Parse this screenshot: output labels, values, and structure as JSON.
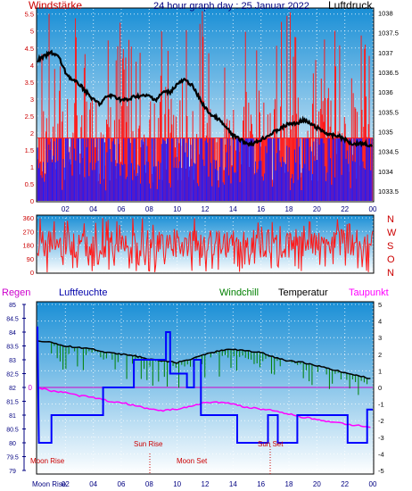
{
  "header": {
    "left_label": "Windstärke",
    "title": "24 hour graph day : 25 Januar 2022",
    "right_label": "Luftdruck"
  },
  "colors": {
    "sky_top": "#1a8fd6",
    "sky_bottom": "#ffffff",
    "wind_red": "#ff1a1a",
    "wind_blue": "#1a1aff",
    "pressure_black": "#000000",
    "humidity_blue": "#0000ff",
    "windchill_green": "#008000",
    "dewpoint_magenta": "#ff00ff",
    "axis_red": "#cc0000",
    "axis_blue": "#000080"
  },
  "chart_data": [
    {
      "type": "line",
      "title": "24 hour graph day : 25 Januar 2022",
      "x_ticks": [
        "02",
        "04",
        "06",
        "08",
        "10",
        "12",
        "14",
        "16",
        "18",
        "20",
        "22",
        "00"
      ],
      "left_axis": {
        "label": "Windstärke",
        "ticks": [
          "0",
          "0.5",
          "1",
          "1.5",
          "2",
          "2.5",
          "3",
          "3.5",
          "4",
          "4.5",
          "5",
          "5.5"
        ],
        "ylim": [
          0,
          5.65
        ]
      },
      "right_axis": {
        "label": "Luftdruck",
        "ticks": [
          "1033.5",
          "1034",
          "1034.5",
          "1035",
          "1035.5",
          "1036",
          "1036.5",
          "1037",
          "1037.5",
          "1038"
        ],
        "ylim": [
          1033.25,
          1038.1
        ]
      },
      "series": [
        {
          "name": "Luftdruck",
          "x": [
            0,
            0.5,
            1,
            1.5,
            2,
            2.5,
            3,
            3.5,
            4,
            4.5,
            5,
            5.5,
            6,
            6.5,
            7,
            7.5,
            8,
            8.5,
            9,
            9.5,
            10,
            10.5,
            11,
            11.5,
            12,
            12.5,
            13,
            13.5,
            14,
            14.5,
            15,
            15.5,
            16,
            16.5,
            17,
            17.5,
            18,
            18.5,
            19,
            19.5,
            20,
            20.5,
            21,
            21.5,
            22,
            22.5,
            23,
            23.5,
            24
          ],
          "values": [
            1036.8,
            1036.9,
            1037.0,
            1036.9,
            1036.5,
            1036.3,
            1036.2,
            1036.0,
            1035.8,
            1035.7,
            1035.9,
            1035.9,
            1035.8,
            1035.8,
            1035.9,
            1035.9,
            1035.9,
            1035.8,
            1036.0,
            1036.0,
            1036.2,
            1036.3,
            1036.2,
            1035.9,
            1035.6,
            1035.4,
            1035.3,
            1035.1,
            1034.9,
            1034.8,
            1034.7,
            1034.7,
            1034.8,
            1034.9,
            1035.0,
            1035.1,
            1035.2,
            1035.2,
            1035.3,
            1035.2,
            1035.1,
            1035.0,
            1034.9,
            1034.9,
            1034.8,
            1034.7,
            1034.7,
            1034.7,
            1034.6
          ]
        }
      ]
    },
    {
      "type": "scatter",
      "left_ticks": [
        "0",
        "90",
        "180",
        "270",
        "360"
      ],
      "right_letters": [
        "N",
        "W",
        "S",
        "O",
        "N"
      ],
      "ylim": [
        0,
        360
      ],
      "series": [
        {
          "name": "Windrichtung"
        }
      ]
    },
    {
      "type": "line",
      "labels": {
        "regen": "Regen",
        "luftfeuchte": "Luftfeuchte",
        "windchill": "Windchill",
        "temperatur": "Temperatur",
        "taupunkt": "Taupunkt"
      },
      "left_ticks": [
        "79",
        "79.5",
        "80",
        "80.5",
        "81",
        "81.5",
        "82",
        "82.5",
        "83",
        "83.5",
        "84",
        "84.5",
        "85"
      ],
      "left_ylim": [
        79,
        85
      ],
      "rain_zero_label": "0",
      "right_ticks": [
        "-5",
        "-4",
        "-3",
        "-2",
        "-1",
        "0",
        "1",
        "2",
        "3",
        "4",
        "5"
      ],
      "right_ylim": [
        -5,
        5
      ],
      "series": [
        {
          "name": "Temperatur",
          "x": [
            0,
            1,
            2,
            3,
            4,
            5,
            6,
            7,
            8,
            9,
            10,
            11,
            12,
            13,
            14,
            15,
            16,
            17,
            18,
            19,
            20,
            21,
            22,
            23,
            24
          ],
          "values": [
            2.8,
            2.7,
            2.5,
            2.4,
            2.3,
            2.1,
            2.0,
            1.9,
            1.7,
            1.6,
            1.5,
            1.7,
            2.0,
            2.2,
            2.3,
            2.2,
            2.1,
            1.8,
            1.6,
            1.5,
            1.3,
            1.1,
            0.9,
            0.7,
            0.5
          ]
        },
        {
          "name": "Taupunkt",
          "x": [
            0,
            1,
            2,
            3,
            4,
            5,
            6,
            7,
            8,
            9,
            10,
            11,
            12,
            13,
            14,
            15,
            16,
            17,
            18,
            19,
            20,
            21,
            22,
            23,
            24
          ],
          "values": [
            0.0,
            -0.2,
            -0.3,
            -0.5,
            -0.6,
            -0.8,
            -0.9,
            -1.1,
            -1.3,
            -1.4,
            -1.3,
            -1.1,
            -0.9,
            -0.9,
            -1.0,
            -1.2,
            -1.3,
            -1.4,
            -1.6,
            -1.8,
            -1.9,
            -2.1,
            -2.2,
            -2.3,
            -2.4
          ]
        },
        {
          "name": "Luftfeuchte",
          "steps": [
            [
              0,
              84.2
            ],
            [
              0.1,
              80
            ],
            [
              1,
              80
            ],
            [
              1,
              81
            ],
            [
              4.7,
              81
            ],
            [
              4.7,
              82
            ],
            [
              6.9,
              82
            ],
            [
              6.9,
              83
            ],
            [
              9.2,
              83
            ],
            [
              9.2,
              84
            ],
            [
              9.5,
              84
            ],
            [
              9.5,
              82.5
            ],
            [
              10.7,
              82.5
            ],
            [
              10.7,
              82
            ],
            [
              11.2,
              82
            ],
            [
              11.2,
              83
            ],
            [
              11.7,
              83
            ],
            [
              11.7,
              81
            ],
            [
              14.3,
              81
            ],
            [
              14.3,
              80
            ],
            [
              16.5,
              80
            ],
            [
              16.5,
              81
            ],
            [
              17.2,
              81
            ],
            [
              17.2,
              80
            ],
            [
              18.6,
              80
            ],
            [
              18.6,
              81
            ],
            [
              22.2,
              81
            ],
            [
              22.2,
              80
            ],
            [
              23.6,
              80
            ],
            [
              23.6,
              81.2
            ],
            [
              24,
              81.2
            ]
          ]
        }
      ]
    }
  ],
  "events": {
    "moon_rise": "Moon Rise",
    "sun_rise": "Sun Rise",
    "moon_set": "Moon Set",
    "sun_set": "Sun Set",
    "moon_rise_bottom": "Moon Rise"
  },
  "bottom_ticks": [
    "02",
    "04",
    "06",
    "08",
    "10",
    "12",
    "14",
    "16",
    "18",
    "20",
    "22",
    "00"
  ]
}
